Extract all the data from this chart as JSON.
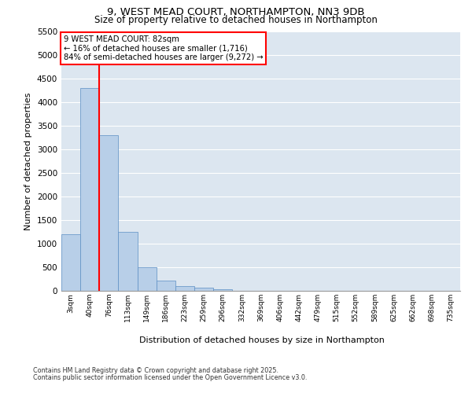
{
  "title_line1": "9, WEST MEAD COURT, NORTHAMPTON, NN3 9DB",
  "title_line2": "Size of property relative to detached houses in Northampton",
  "xlabel": "Distribution of detached houses by size in Northampton",
  "ylabel": "Number of detached properties",
  "footnote1": "Contains HM Land Registry data © Crown copyright and database right 2025.",
  "footnote2": "Contains public sector information licensed under the Open Government Licence v3.0.",
  "annotation_title": "9 WEST MEAD COURT: 82sqm",
  "annotation_line1": "← 16% of detached houses are smaller (1,716)",
  "annotation_line2": "84% of semi-detached houses are larger (9,272) →",
  "bar_color": "#b8cfe8",
  "bar_edge_color": "#5b8ec4",
  "vline_color": "red",
  "categories": [
    "3sqm",
    "40sqm",
    "76sqm",
    "113sqm",
    "149sqm",
    "186sqm",
    "223sqm",
    "259sqm",
    "296sqm",
    "332sqm",
    "369sqm",
    "406sqm",
    "442sqm",
    "479sqm",
    "515sqm",
    "552sqm",
    "589sqm",
    "625sqm",
    "662sqm",
    "698sqm",
    "735sqm"
  ],
  "values": [
    1200,
    4300,
    3300,
    1250,
    500,
    220,
    100,
    60,
    30,
    0,
    0,
    0,
    0,
    0,
    0,
    0,
    0,
    0,
    0,
    0,
    0
  ],
  "ylim": [
    0,
    5500
  ],
  "yticks": [
    0,
    500,
    1000,
    1500,
    2000,
    2500,
    3000,
    3500,
    4000,
    4500,
    5000,
    5500
  ],
  "vline_x": 2,
  "background_color": "#dce6f0",
  "grid_color": "#ffffff"
}
